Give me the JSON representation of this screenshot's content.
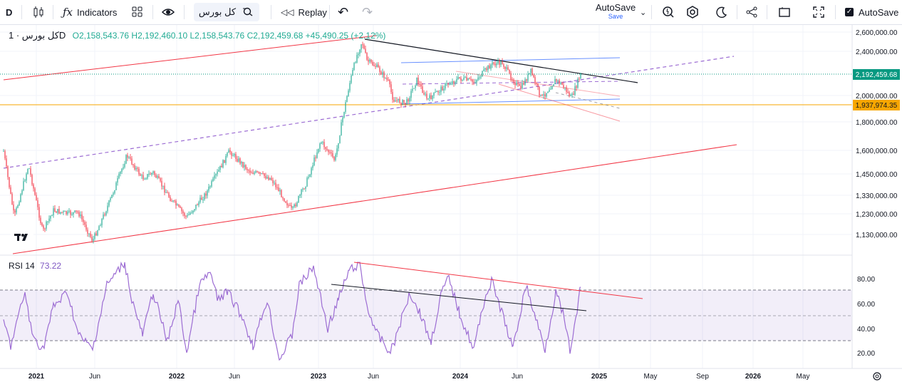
{
  "toolbar": {
    "interval": "D",
    "indicators_label": "Indicators",
    "symbol": "کل بورس",
    "replay_label": "Replay",
    "autosave_title": "AutoSave",
    "autosave_sub": "Save",
    "autosave_toggle_label": "AutoSave",
    "autosave_checked": true
  },
  "legend": {
    "title": "کل بورس · 1D",
    "open": "O2,158,543.76",
    "high": "H2,192,460.10",
    "low": "L2,158,543.76",
    "close": "C2,192,459.68",
    "change": "+45,490.25 (+2.12%)"
  },
  "rsi": {
    "label": "RSI 14",
    "value": "73.22"
  },
  "price_axis": {
    "ticks": [
      "2,600,000.00",
      "2,400,000.00",
      "2,000,000.00",
      "1,800,000.00",
      "1,600,000.00",
      "1,450,000.00",
      "1,330,000.00",
      "1,230,000.00",
      "1,130,000.00"
    ],
    "last_price": "2,192,459.68",
    "hline_price": "1,937,974.35"
  },
  "rsi_axis": {
    "ticks": [
      "80.00",
      "60.00",
      "40.00",
      "20.00"
    ]
  },
  "time_axis": {
    "ticks": [
      "2021",
      "Jun",
      "2022",
      "Jun",
      "2023",
      "Jun",
      "2024",
      "Jun",
      "2025",
      "May",
      "Sep",
      "2026",
      "May"
    ]
  },
  "colors": {
    "up": "#22ab94",
    "down": "#f23645",
    "rsi": "#9c6cd3",
    "hline": "#f7a600",
    "last": "#089981"
  }
}
